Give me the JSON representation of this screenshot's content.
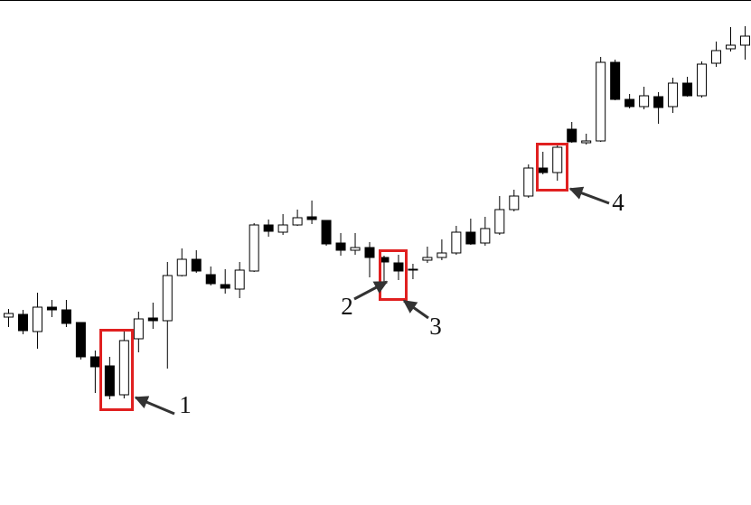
{
  "chart_data": {
    "type": "candlestick",
    "open": [
      209,
      212,
      193,
      220,
      217,
      203,
      165,
      155,
      123,
      185,
      208,
      205,
      255,
      273,
      256,
      245,
      240,
      260,
      311,
      303,
      311,
      320,
      316,
      291,
      283,
      286,
      275,
      269,
      261,
      272,
      275,
      280,
      303,
      291,
      302,
      328,
      343,
      374,
      369,
      417,
      402,
      404,
      491,
      450,
      442,
      453,
      442,
      468,
      454,
      490,
      506,
      510
    ],
    "high": [
      218,
      217,
      236,
      228,
      228,
      203,
      172,
      165,
      195,
      215,
      225,
      270,
      285,
      283,
      265,
      262,
      270,
      313,
      317,
      323,
      328,
      338,
      316,
      302,
      302,
      292,
      277,
      278,
      268,
      287,
      295,
      310,
      318,
      320,
      343,
      350,
      378,
      392,
      400,
      425,
      412,
      497,
      494,
      456,
      464,
      458,
      474,
      475,
      492,
      514,
      530,
      531
    ],
    "low": [
      198,
      190,
      174,
      209,
      198,
      162,
      125,
      118,
      119,
      170,
      196,
      152,
      254,
      258,
      244,
      235,
      230,
      259,
      298,
      300,
      310,
      312,
      288,
      277,
      278,
      253,
      248,
      250,
      251,
      269,
      272,
      278,
      289,
      288,
      300,
      326,
      341,
      367,
      360,
      402,
      400,
      403,
      449,
      440,
      439,
      423,
      435,
      453,
      452,
      486,
      503,
      494
    ],
    "close": [
      213,
      194,
      220,
      217,
      202,
      165,
      154,
      122,
      183,
      207,
      205,
      255,
      273,
      260,
      246,
      241,
      261,
      311,
      304,
      311,
      319,
      317,
      290,
      283,
      286,
      275,
      270,
      260,
      262,
      275,
      280,
      303,
      290,
      307,
      328,
      343,
      374,
      369,
      397,
      403,
      404,
      491,
      450,
      442,
      454,
      441,
      468,
      454,
      489,
      504,
      510,
      520
    ],
    "ylim": [
      0,
      560
    ],
    "up_color": "#ffffff",
    "down_color": "#000000",
    "annotations": [
      "1",
      "2",
      "3",
      "4"
    ]
  }
}
